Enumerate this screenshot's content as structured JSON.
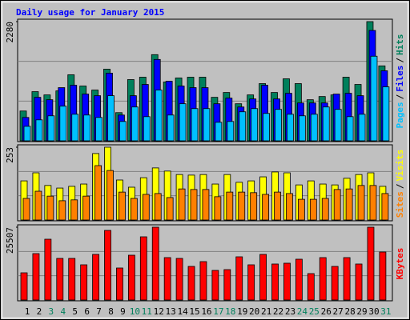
{
  "chart_data": [
    {
      "type": "bar",
      "title": "Daily usage for January 2015",
      "ylim": [
        0,
        2280
      ],
      "yticks": [
        2280
      ],
      "grid": true,
      "separator": "/",
      "series": [
        {
          "name": "Hits",
          "color": "#00805c",
          "values": [
            570,
            940,
            878,
            955,
            1263,
            1048,
            971,
            1371,
            539,
            1171,
            1217,
            1648,
            1125,
            1202,
            1217,
            1217,
            832,
            924,
            709,
            878,
            1094,
            924,
            1186,
            1094,
            786,
            847,
            878,
            1217,
            1078,
            2280,
            1433
          ]
        },
        {
          "name": "Files",
          "color": "#0000ff",
          "values": [
            447,
            832,
            786,
            1017,
            1063,
            894,
            863,
            1294,
            493,
            863,
            1078,
            1556,
            1140,
            1048,
            1017,
            1017,
            709,
            817,
            647,
            801,
            1063,
            801,
            909,
            724,
            724,
            724,
            894,
            909,
            863,
            2111,
            1340
          ]
        },
        {
          "name": "Pages",
          "color": "#00c0ff",
          "values": [
            277,
            401,
            478,
            663,
            508,
            493,
            447,
            863,
            370,
            647,
            462,
            971,
            493,
            709,
            616,
            616,
            354,
            370,
            555,
            616,
            524,
            601,
            508,
            478,
            508,
            647,
            601,
            462,
            508,
            1618,
            1032
          ]
        }
      ]
    },
    {
      "type": "bar",
      "ylim": [
        0,
        253
      ],
      "yticks": [
        253
      ],
      "grid": true,
      "separator": "/",
      "series": [
        {
          "name": "Visits",
          "color": "#ffff00",
          "values": [
            136,
            164,
            120,
            111,
            117,
            125,
            231,
            253,
            139,
            114,
            147,
            181,
            170,
            158,
            156,
            158,
            125,
            158,
            131,
            136,
            150,
            167,
            164,
            122,
            136,
            125,
            122,
            145,
            158,
            164,
            117
          ]
        },
        {
          "name": "Sites",
          "color": "#ff8000",
          "values": [
            75,
            100,
            83,
            67,
            70,
            83,
            189,
            172,
            97,
            75,
            89,
            92,
            78,
            108,
            106,
            106,
            81,
            97,
            97,
            95,
            89,
            97,
            92,
            72,
            72,
            75,
            106,
            108,
            120,
            120,
            92
          ]
        }
      ]
    },
    {
      "type": "bar",
      "ylim": [
        0,
        25507
      ],
      "yticks": [
        25507
      ],
      "grid": true,
      "categories": [
        "1",
        "2",
        "3",
        "4",
        "5",
        "6",
        "7",
        "8",
        "9",
        "10",
        "11",
        "12",
        "13",
        "14",
        "15",
        "16",
        "17",
        "18",
        "19",
        "20",
        "21",
        "22",
        "23",
        "24",
        "25",
        "26",
        "27",
        "28",
        "29",
        "30",
        "31"
      ],
      "weekend": [
        false,
        false,
        true,
        true,
        false,
        false,
        false,
        false,
        false,
        true,
        true,
        false,
        false,
        false,
        false,
        false,
        true,
        true,
        false,
        false,
        false,
        false,
        false,
        true,
        true,
        false,
        false,
        false,
        false,
        false,
        true
      ],
      "weekday_color": "#000000",
      "weekend_color": "#00805c",
      "series": [
        {
          "name": "KBytes",
          "color": "#ff0000",
          "values": [
            9530,
            16257,
            21302,
            14575,
            14575,
            12333,
            15977,
            24386,
            11212,
            15696,
            22143,
            25507,
            14856,
            14575,
            11772,
            13454,
            10371,
            10651,
            15136,
            12333,
            15977,
            12613,
            12894,
            14295,
            9250,
            14856,
            11772,
            14856,
            12613,
            25507,
            16818
          ]
        }
      ]
    }
  ]
}
